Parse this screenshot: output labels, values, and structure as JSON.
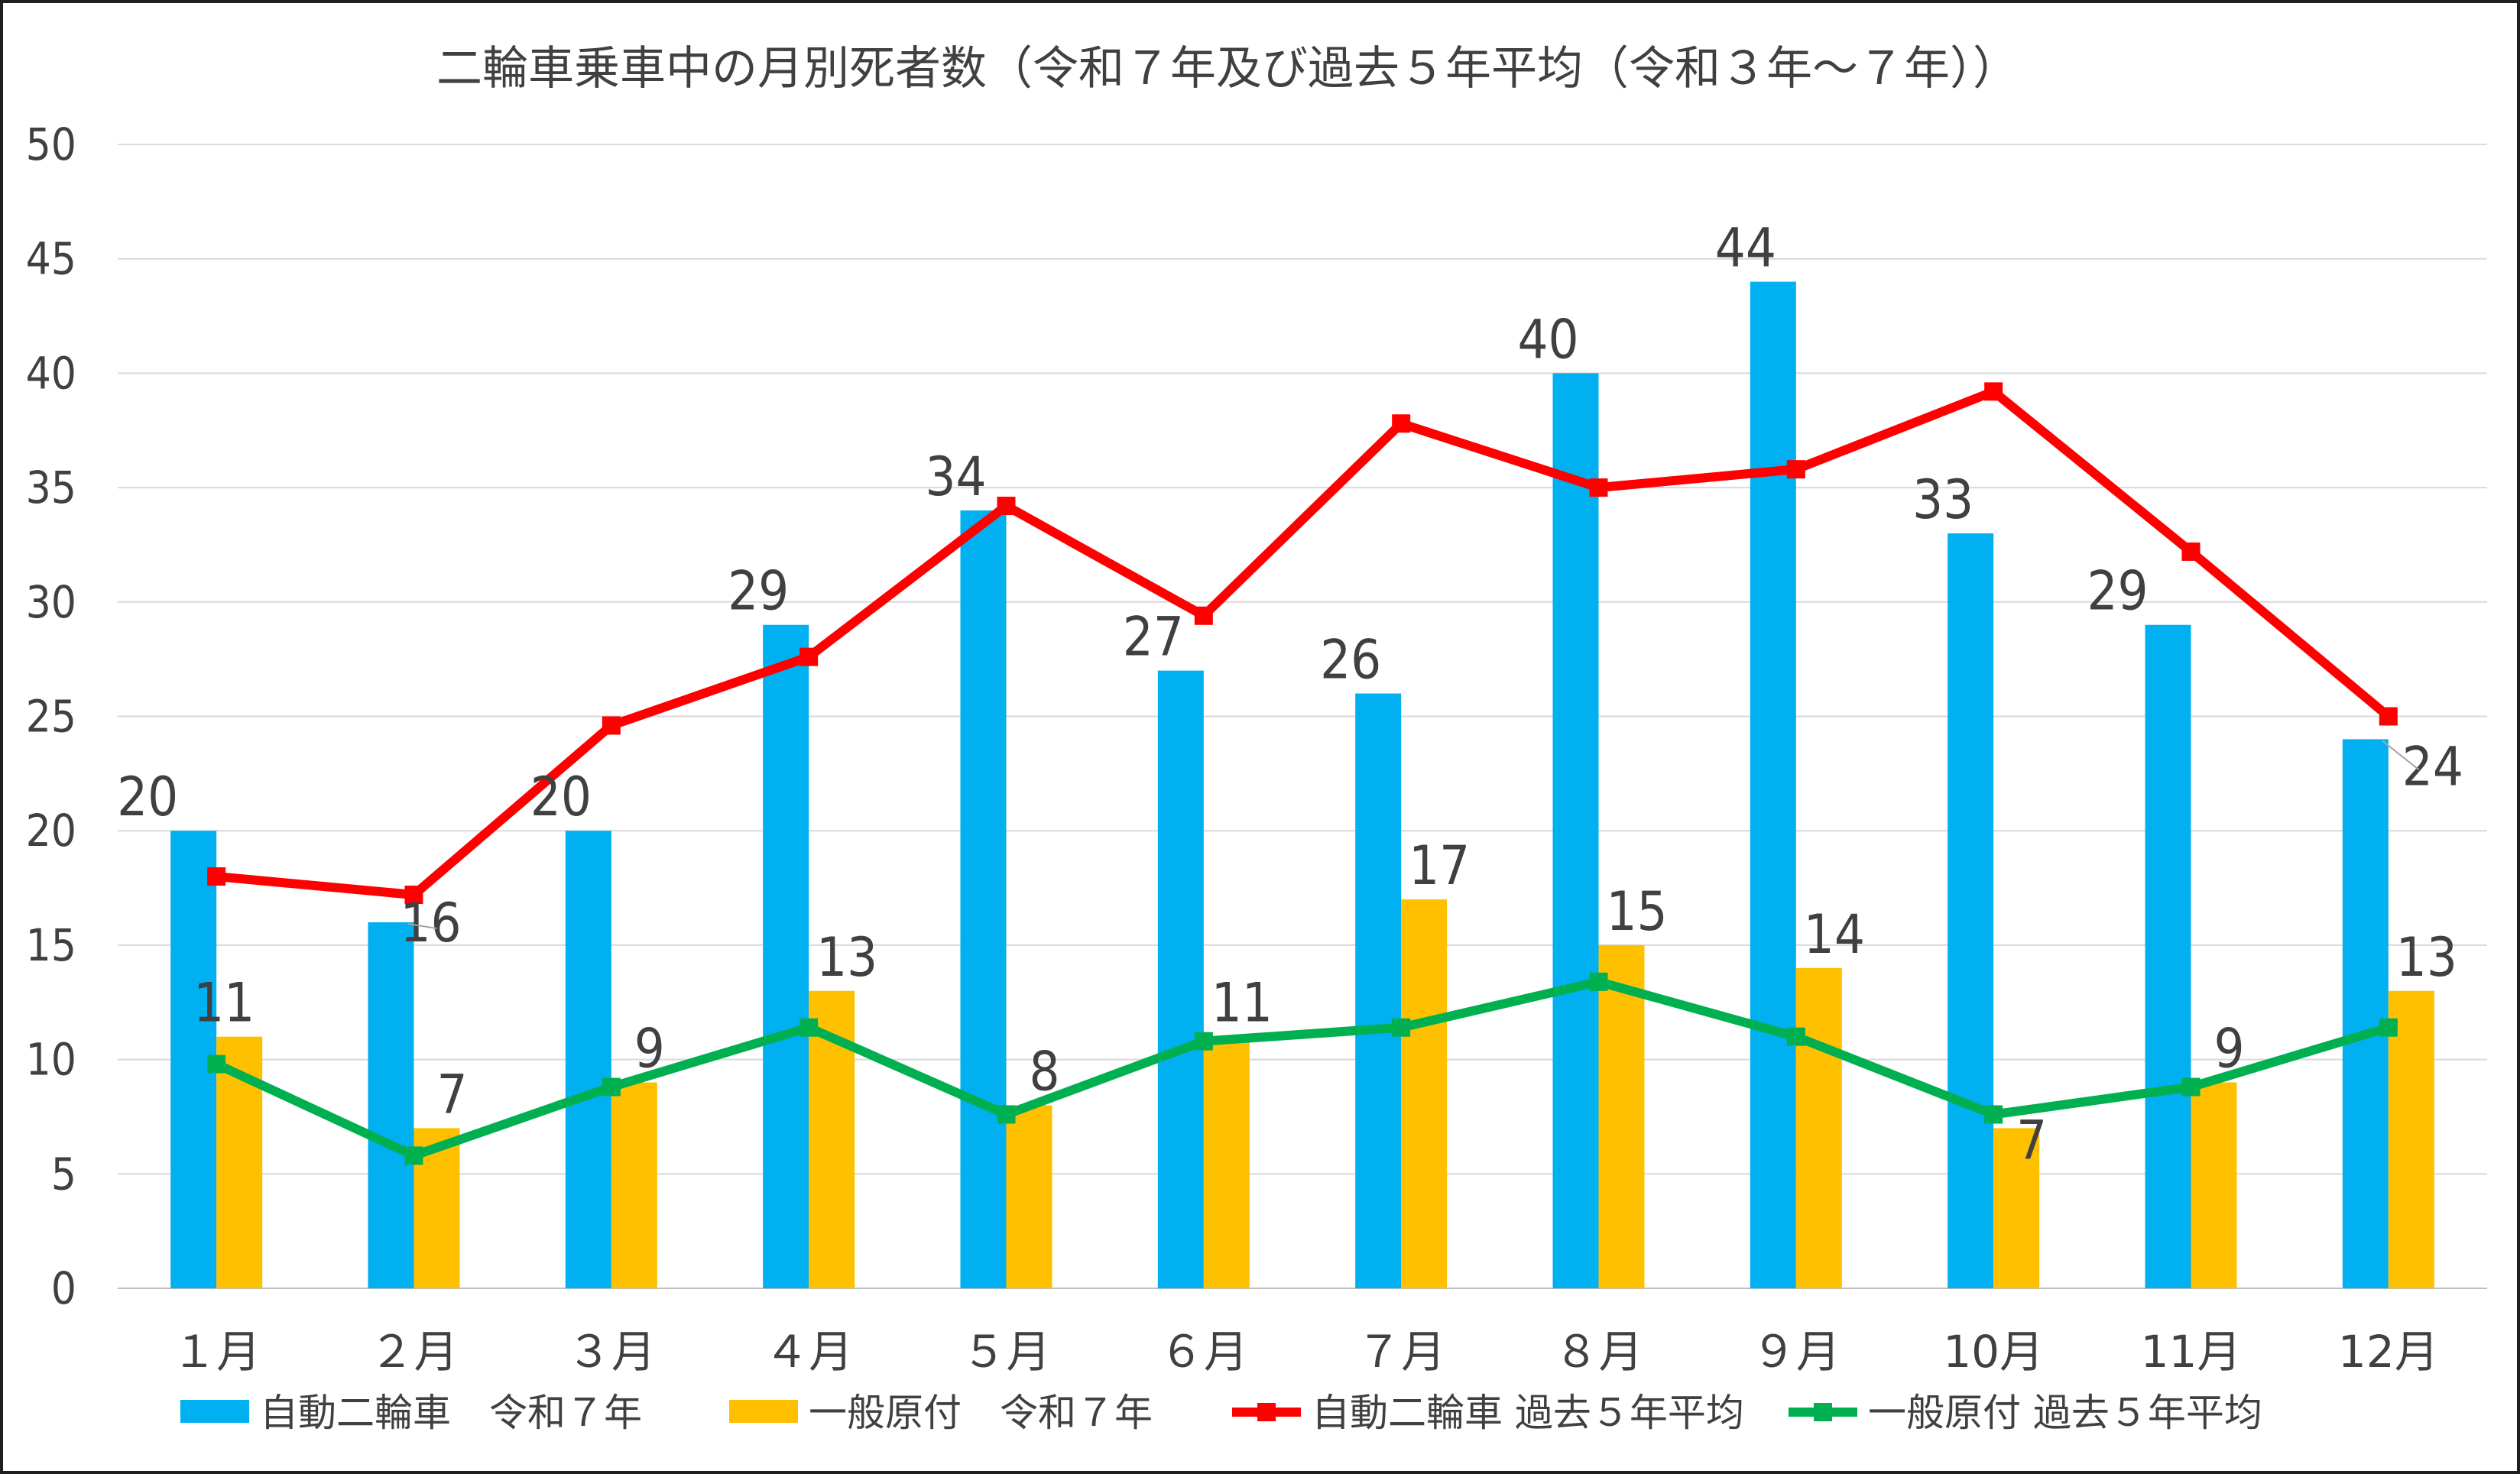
{
  "chart_data": {
    "type": "bar",
    "title": "二輪車乗車中の月別死者数（令和７年及び過去５年平均（令和３年～７年））",
    "categories": [
      "１月",
      "２月",
      "３月",
      "４月",
      "５月",
      "６月",
      "７月",
      "８月",
      "９月",
      "10月",
      "11月",
      "12月"
    ],
    "ylim": [
      0,
      50
    ],
    "yticks": [
      0,
      5,
      10,
      15,
      20,
      25,
      30,
      35,
      40,
      45,
      50
    ],
    "grid": true,
    "legend_position": "bottom",
    "series": [
      {
        "name": "自動二輪車　令和７年",
        "kind": "bar",
        "color": "#00B0F0",
        "values": [
          20,
          16,
          20,
          29,
          34,
          27,
          26,
          40,
          44,
          33,
          29,
          24
        ]
      },
      {
        "name": "一般原付　令和７年",
        "kind": "bar",
        "color": "#FFC000",
        "values": [
          11,
          7,
          9,
          13,
          8,
          11,
          17,
          15,
          14,
          7,
          9,
          13
        ]
      },
      {
        "name": "自動二輪車 過去５年平均",
        "kind": "line",
        "color": "#FF0000",
        "values": [
          18.0,
          17.2,
          24.6,
          27.6,
          34.2,
          29.4,
          37.8,
          35.0,
          35.8,
          39.2,
          32.2,
          25.0
        ]
      },
      {
        "name": "一般原付 過去５年平均",
        "kind": "line",
        "color": "#00B050",
        "values": [
          9.8,
          5.8,
          8.8,
          11.4,
          7.6,
          10.8,
          11.4,
          13.4,
          11.0,
          7.6,
          8.8,
          11.4
        ]
      }
    ]
  }
}
